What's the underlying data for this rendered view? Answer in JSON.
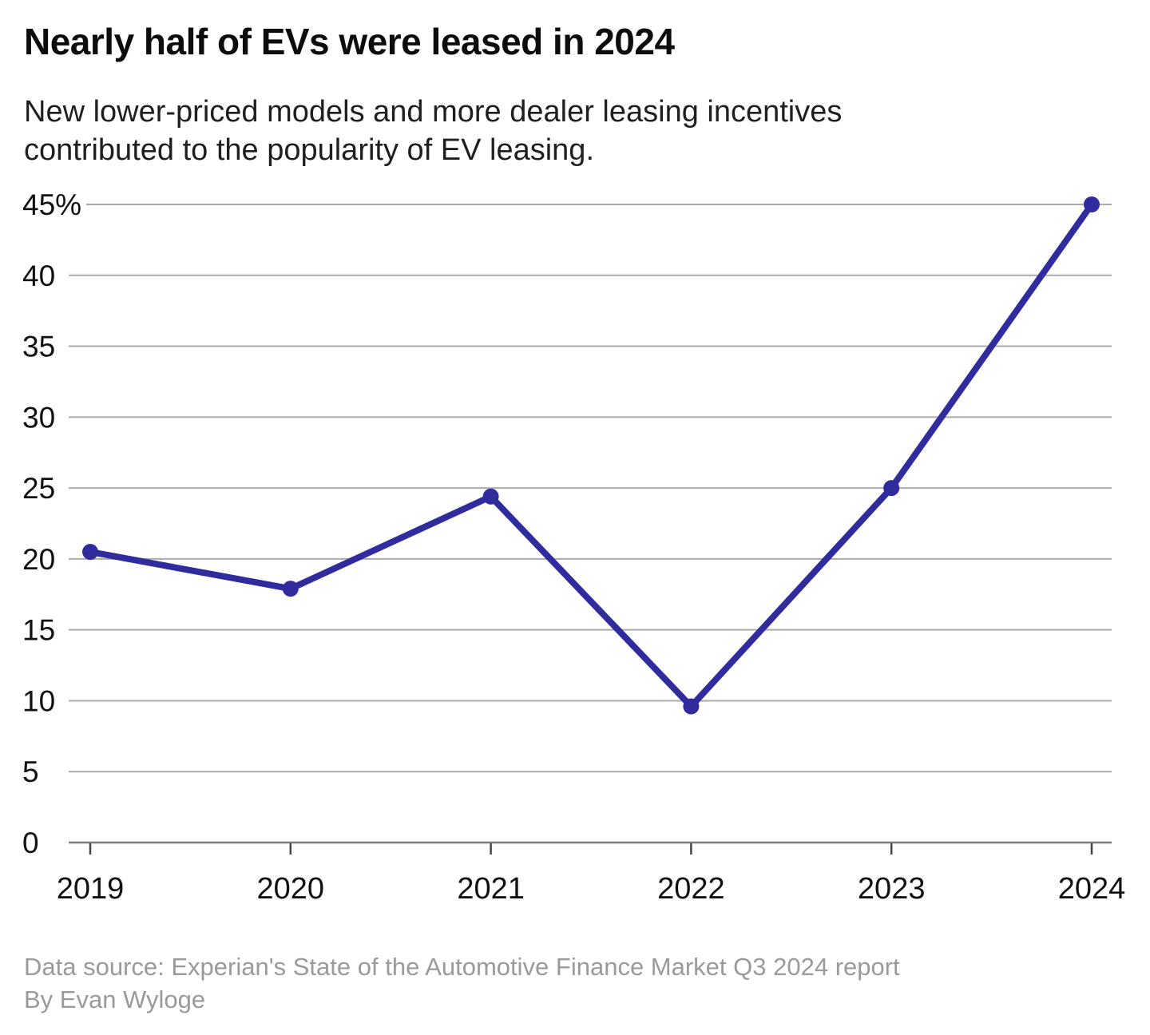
{
  "header": {
    "title": "Nearly half of EVs were leased in 2024",
    "subtitle_line1": "New lower-priced models and more dealer leasing incentives",
    "subtitle_line2": "contributed to the popularity of EV leasing."
  },
  "footer": {
    "source": "Data source: Experian's State of the Automotive Finance Market Q3 2024 report",
    "byline": "By Evan Wyloge"
  },
  "chart_data": {
    "type": "line",
    "title": "Nearly half of EVs were leased in 2024",
    "subtitle": "New lower-priced models and more dealer leasing incentives contributed to the popularity of EV leasing.",
    "x": [
      2019,
      2020,
      2021,
      2022,
      2023,
      2024
    ],
    "values": [
      20.5,
      17.9,
      24.4,
      9.6,
      25,
      45
    ],
    "xlabel": "",
    "ylabel": "",
    "ylim": [
      0,
      45
    ],
    "ytick_step": 5,
    "ytick_labels": [
      "0",
      "5",
      "10",
      "15",
      "20",
      "25",
      "30",
      "35",
      "40",
      "45%"
    ],
    "xtick_labels": [
      "2019",
      "2020",
      "2021",
      "2022",
      "2023",
      "2024"
    ],
    "grid": "horizontal",
    "legend": "none"
  },
  "colors": {
    "line": "#302C9E",
    "gridline": "#ABABAB",
    "baseline": "#7D7D7D",
    "tick": "#444444",
    "axis_text": "#111111",
    "title_text": "#0D0D0D",
    "subtitle_text": "#1F1F1F",
    "footer_text": "#9A9A9A",
    "background": "#FFFFFF"
  }
}
